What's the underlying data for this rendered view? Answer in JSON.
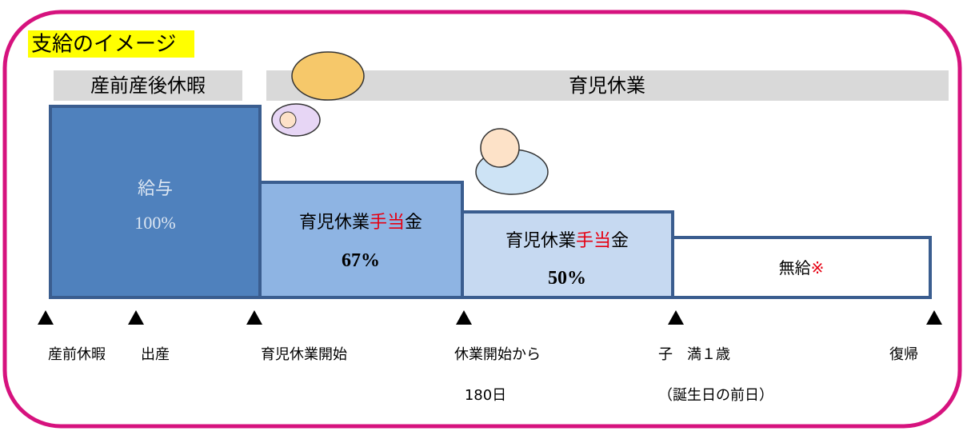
{
  "title": "支給のイメージ",
  "periods": [
    "産前産後休暇",
    "育児休業"
  ],
  "blocks": [
    {
      "lines": [
        [
          "給与"
        ],
        [
          "100%"
        ]
      ]
    },
    {
      "lines": [
        [
          "育児休業",
          "手当",
          "金"
        ],
        [
          "67%"
        ]
      ]
    },
    {
      "lines": [
        [
          "育児休業",
          "手当",
          "金"
        ],
        [
          "50%"
        ]
      ]
    },
    {
      "lines": [
        [
          "無給",
          "※"
        ]
      ]
    }
  ],
  "milestones": [
    {
      "lines": [
        "産前休暇"
      ]
    },
    {
      "lines": [
        "出産"
      ]
    },
    {
      "lines": [
        "育児休業開始"
      ]
    },
    {
      "lines": [
        "休業開始から",
        "180日"
      ]
    },
    {
      "lines": [
        "子　満１歳",
        "（誕生日の前日）"
      ]
    },
    {
      "lines": [
        "復帰"
      ]
    }
  ]
}
